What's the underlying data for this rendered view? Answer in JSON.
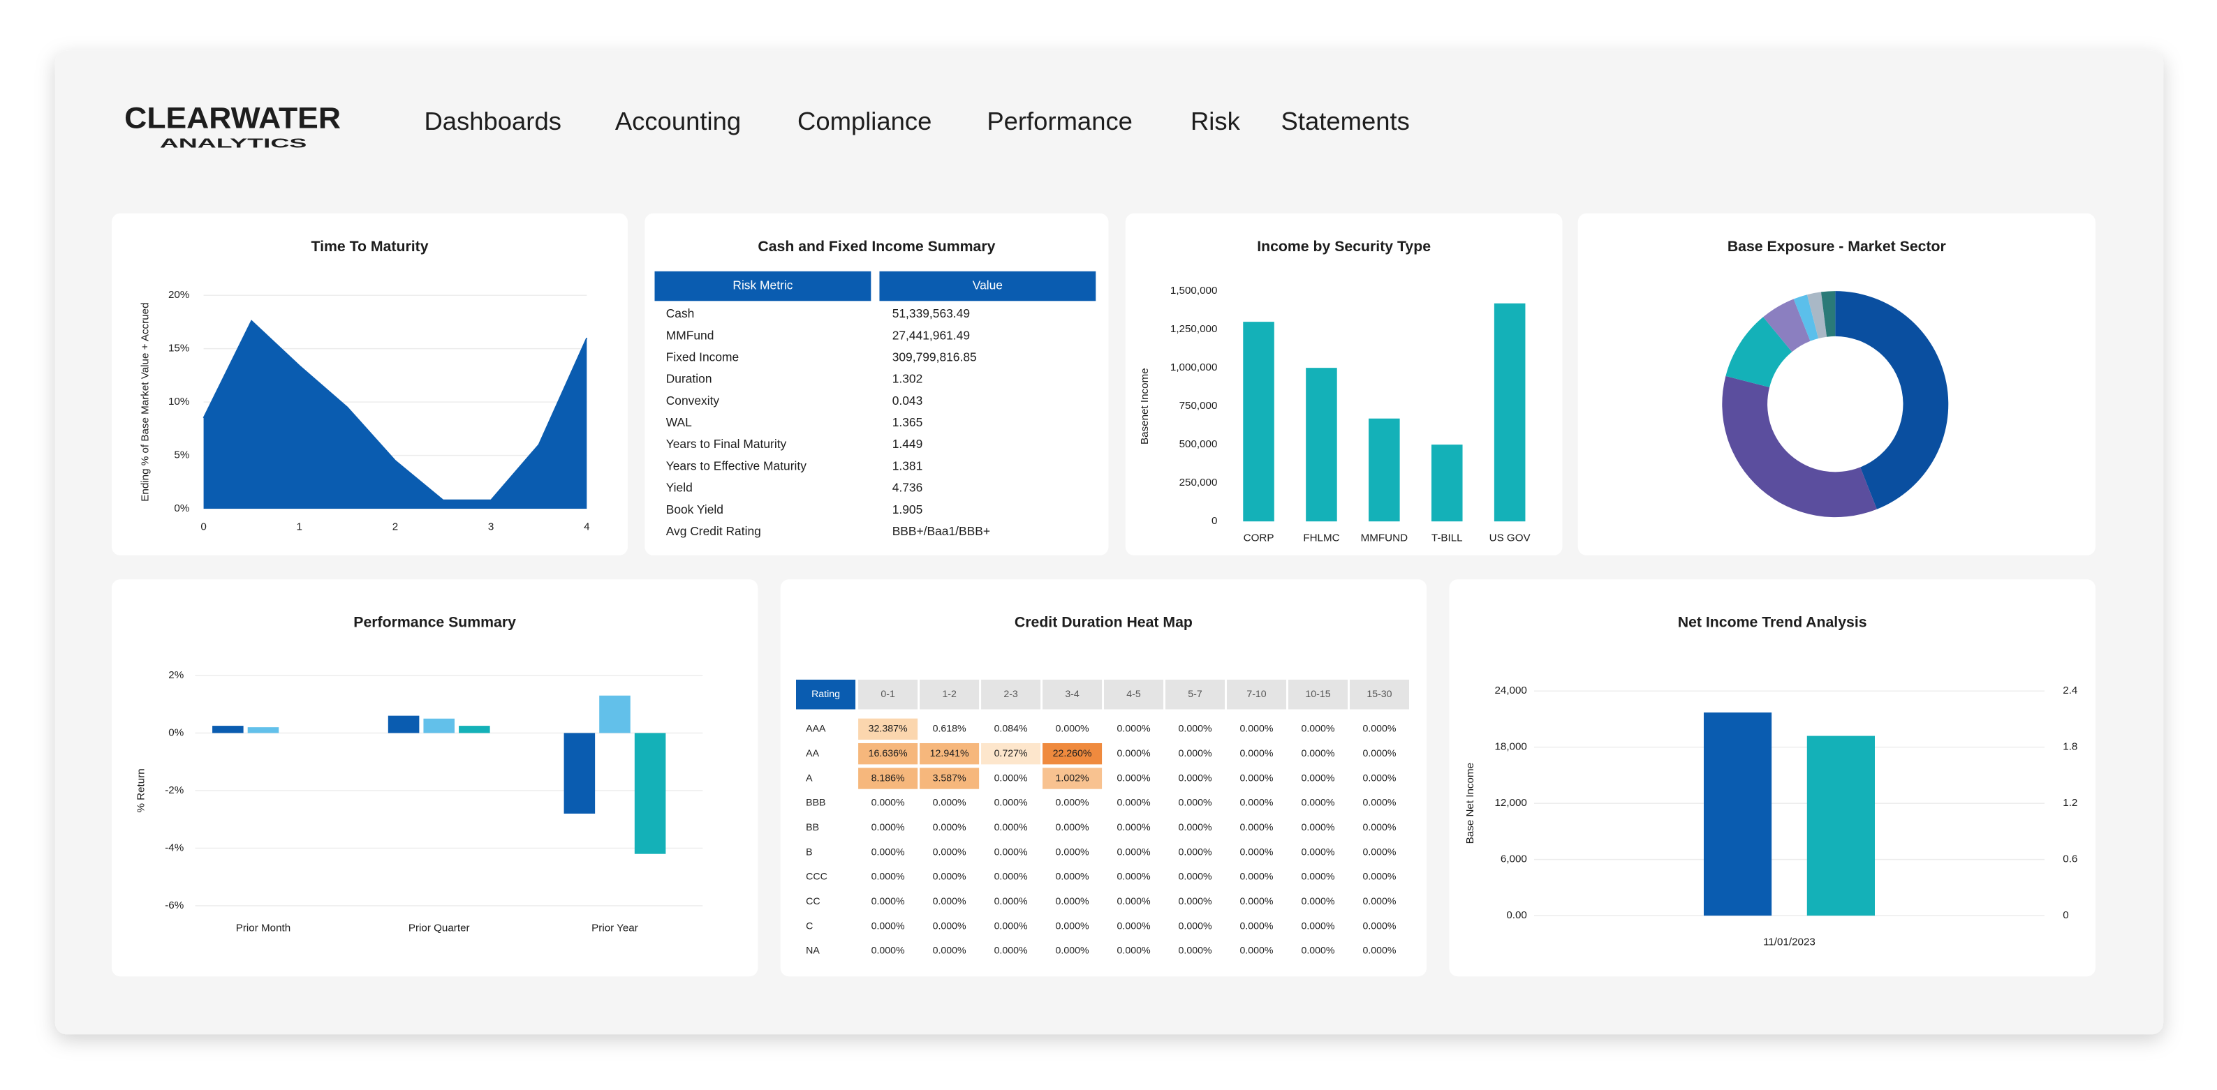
{
  "logo": {
    "name": "CLEARWATER",
    "tagline": "ANALYTICS",
    "color": "#0a5cb0",
    "tagline_color": "#14a8c8"
  },
  "nav": {
    "items": [
      "Dashboards",
      "Accounting",
      "Compliance",
      "Performance",
      "Risk",
      "Statements"
    ],
    "active": 0,
    "active_color": "#0a5cb0"
  },
  "chart_data": [
    {
      "type": "area",
      "title": "Time To Maturity",
      "x": [
        0,
        0.5,
        1,
        1.5,
        2,
        2.5,
        3,
        3.5,
        4
      ],
      "y": [
        8.5,
        17.6,
        13.4,
        9.5,
        4.5,
        0.8,
        0.8,
        6,
        16
      ],
      "color": "#0a5cb0",
      "xlim": [
        0,
        4
      ],
      "xticks": [
        0,
        1,
        2,
        3,
        4
      ],
      "ylim": [
        0,
        20
      ],
      "yticks": [
        {
          "value": 0,
          "label": "0%"
        },
        {
          "value": 5,
          "label": "5%"
        },
        {
          "value": 10,
          "label": "10%"
        },
        {
          "value": 15,
          "label": "15%"
        },
        {
          "value": 20,
          "label": "20%"
        }
      ],
      "ylabel": "Ending % of Base Market Value + Accrued",
      "grid": true
    },
    {
      "type": "table",
      "title": "Cash and Fixed Income Summary",
      "header_color": "#0a5cb0",
      "columns": [
        "Risk Metric",
        "Value"
      ],
      "rows": [
        [
          "Cash",
          "51,339,563.49"
        ],
        [
          "MMFund",
          "27,441,961.49"
        ],
        [
          "Fixed Income",
          "309,799,816.85"
        ],
        [
          "Duration",
          "1.302"
        ],
        [
          "Convexity",
          "0.043"
        ],
        [
          "WAL",
          "1.365"
        ],
        [
          "Years to Final Maturity",
          "1.449"
        ],
        [
          "Years to Effective Maturity",
          "1.381"
        ],
        [
          "Yield",
          "4.736"
        ],
        [
          "Book Yield",
          "1.905"
        ],
        [
          "Avg Credit Rating",
          "BBB+/Baa1/BBB+"
        ]
      ]
    },
    {
      "type": "bar",
      "title": "Income by Security Type",
      "categories": [
        "CORP",
        "FHLMC",
        "MMFUND",
        "T-BILL",
        "US GOV"
      ],
      "values": [
        1300000,
        1000000,
        670000,
        500000,
        1420000
      ],
      "color": "#14b1b8",
      "ylim": [
        0,
        1500000
      ],
      "yticks": [
        0,
        {
          "value": 250000,
          "label": "250,000"
        },
        {
          "value": 500000,
          "label": "500,000"
        },
        {
          "value": 750000,
          "label": "750,000"
        },
        {
          "value": 1000000,
          "label": "1,000,000"
        },
        {
          "value": 1250000,
          "label": "1,250,000"
        },
        {
          "value": 1500000,
          "label": "1,500,000"
        }
      ],
      "ylabel": "Basenet Income",
      "grid": false
    },
    {
      "type": "donut",
      "title": "Base Exposure - Market Sector",
      "values": [
        44,
        35,
        10,
        5,
        2,
        2,
        2
      ],
      "colors": [
        "#0a4fa0",
        "#5b4e9e",
        "#14b1b8",
        "#8b7fc0",
        "#5bbfeb",
        "#a9b8c6",
        "#2a7a78"
      ]
    },
    {
      "type": "bar",
      "title": "Performance Summary",
      "categories": [
        "Prior Month",
        "Prior Quarter",
        "Prior Year"
      ],
      "series": [
        {
          "color": "#0a5cb0",
          "values": [
            0.25,
            0.6,
            -2.8
          ]
        },
        {
          "color": "#62c0ea",
          "values": [
            0.2,
            0.5,
            1.3
          ]
        },
        {
          "color": "#14b1b8",
          "values": [
            null,
            0.25,
            -4.2
          ]
        }
      ],
      "ylim": [
        -6,
        2
      ],
      "yticks": [
        {
          "value": -6,
          "label": "-6%"
        },
        {
          "value": -4,
          "label": "-4%"
        },
        {
          "value": -2,
          "label": "-2%"
        },
        {
          "value": 0,
          "label": "0%"
        },
        {
          "value": 2,
          "label": "2%"
        }
      ],
      "ylabel": "% Return",
      "grid": true
    },
    {
      "type": "heatmap",
      "title": "Credit Duration Heat Map",
      "header_color": "#0a5cb0",
      "header_bg": "#e4e4e4",
      "columns": [
        "Rating",
        "0-1",
        "1-2",
        "2-3",
        "3-4",
        "4-5",
        "5-7",
        "7-10",
        "10-15",
        "15-30"
      ],
      "rows": [
        [
          "AAA",
          "32.387%",
          "0.618%",
          "0.084%",
          "0.000%",
          "0.000%",
          "0.000%",
          "0.000%",
          "0.000%",
          "0.000%"
        ],
        [
          "AA",
          "16.636%",
          "12.941%",
          "0.727%",
          "22.260%",
          "0.000%",
          "0.000%",
          "0.000%",
          "0.000%",
          "0.000%"
        ],
        [
          "A",
          "8.186%",
          "3.587%",
          "0.000%",
          "1.002%",
          "0.000%",
          "0.000%",
          "0.000%",
          "0.000%",
          "0.000%"
        ],
        [
          "BBB",
          "0.000%",
          "0.000%",
          "0.000%",
          "0.000%",
          "0.000%",
          "0.000%",
          "0.000%",
          "0.000%",
          "0.000%"
        ],
        [
          "BB",
          "0.000%",
          "0.000%",
          "0.000%",
          "0.000%",
          "0.000%",
          "0.000%",
          "0.000%",
          "0.000%",
          "0.000%"
        ],
        [
          "B",
          "0.000%",
          "0.000%",
          "0.000%",
          "0.000%",
          "0.000%",
          "0.000%",
          "0.000%",
          "0.000%",
          "0.000%"
        ],
        [
          "CCC",
          "0.000%",
          "0.000%",
          "0.000%",
          "0.000%",
          "0.000%",
          "0.000%",
          "0.000%",
          "0.000%",
          "0.000%"
        ],
        [
          "CC",
          "0.000%",
          "0.000%",
          "0.000%",
          "0.000%",
          "0.000%",
          "0.000%",
          "0.000%",
          "0.000%",
          "0.000%"
        ],
        [
          "C",
          "0.000%",
          "0.000%",
          "0.000%",
          "0.000%",
          "0.000%",
          "0.000%",
          "0.000%",
          "0.000%",
          "0.000%"
        ],
        [
          "NA",
          "0.000%",
          "0.000%",
          "0.000%",
          "0.000%",
          "0.000%",
          "0.000%",
          "0.000%",
          "0.000%",
          "0.000%"
        ]
      ],
      "highlights": [
        {
          "row": 0,
          "col": 1,
          "color": "#fbd6ae"
        },
        {
          "row": 1,
          "col": 1,
          "color": "#f6b77c"
        },
        {
          "row": 1,
          "col": 2,
          "color": "#f6b77c"
        },
        {
          "row": 1,
          "col": 3,
          "color": "#fde6cc"
        },
        {
          "row": 1,
          "col": 4,
          "color": "#ef8a3e"
        },
        {
          "row": 2,
          "col": 1,
          "color": "#f6b77c"
        },
        {
          "row": 2,
          "col": 2,
          "color": "#f6b77c"
        },
        {
          "row": 2,
          "col": 4,
          "color": "#f8c290"
        }
      ]
    },
    {
      "type": "bar",
      "title": "Net Income Trend Analysis",
      "categories": [
        "11/01/2023"
      ],
      "series": [
        {
          "color": "#0a5cb0",
          "values": [
            21700
          ]
        },
        {
          "color": "#14b1b8",
          "values": [
            19200
          ]
        }
      ],
      "ylim": [
        0,
        24000
      ],
      "yticks": [
        {
          "value": 0,
          "label": "0.00"
        },
        {
          "value": 6000,
          "label": "6,000"
        },
        {
          "value": 12000,
          "label": "12,000"
        },
        {
          "value": 18000,
          "label": "18,000"
        },
        {
          "value": 24000,
          "label": "24,000"
        }
      ],
      "y2lim": [
        0,
        2.4
      ],
      "y2ticks": [
        0,
        0.6,
        1.2,
        1.8,
        2.4
      ],
      "ylabel": "Base Net Income",
      "grid": true
    }
  ]
}
